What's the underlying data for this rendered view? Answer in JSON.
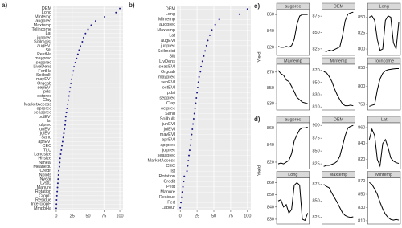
{
  "chart_data": [
    {
      "type": "dot",
      "label": "a)",
      "color": "#1a1a8c",
      "xlim": [
        -5,
        105
      ],
      "xticks": [
        0,
        25,
        50,
        75,
        100
      ],
      "categories": [
        "DEM",
        "Long",
        "Mintemp",
        "augprec",
        "Maxtemp",
        "Tolincome",
        "Lat",
        "junprec",
        "Soilmoist",
        "augEVI",
        "Silt",
        "PestHa",
        "mayprec",
        "sepprec",
        "LiveDens",
        "FertHa",
        "Soilbulk",
        "mayEVI",
        "Orgcab",
        "sepEVI",
        "pdsi",
        "octprec",
        "Clay",
        "MarketAccess",
        "aprprec",
        "seasprec",
        "octEVI",
        "lst",
        "julprec",
        "junEVI",
        "julEVI",
        "Sand",
        "aprEVI",
        "CEC",
        "TLU",
        "Landsize",
        "Hhsize",
        "Nmeal",
        "Meanedu",
        "Credit",
        "Nplots",
        "Nyear",
        "LvstD",
        "Manure",
        "Rotation",
        "CropD",
        "Residue",
        "IntercropH",
        "MmpbHa"
      ],
      "values": [
        100,
        94,
        76,
        62,
        55,
        50,
        46,
        43,
        41,
        38,
        36,
        34,
        32,
        30,
        28,
        27,
        25,
        24,
        23,
        22,
        21,
        20,
        19,
        18,
        17,
        16,
        15,
        14.5,
        14,
        13,
        12,
        11,
        10,
        9,
        8,
        7,
        6,
        5.5,
        5,
        4,
        3.5,
        3,
        2.5,
        2,
        1.5,
        1,
        0.5,
        0.3,
        0
      ]
    },
    {
      "type": "dot",
      "label": "b)",
      "color": "#1a1a8c",
      "xlim": [
        -5,
        105
      ],
      "xticks": [
        0,
        25,
        50,
        75,
        100
      ],
      "categories": [
        "DEM",
        "Long",
        "Mintemp",
        "augprec",
        "Maxtemp",
        "Lat",
        "augEVI",
        "junprec",
        "Soilmoist",
        "Silt",
        "LivDens",
        "seasEVI",
        "Orgcab",
        "mayprec",
        "sepEVI",
        "octEVI",
        "pdsi",
        "sepprec",
        "Clay",
        "octprec",
        "Sand",
        "Soilbulk",
        "junEVI",
        "julEVI",
        "mayEVI",
        "aprEVI",
        "aprprec",
        "julprec",
        "seasprec",
        "MarketAccess",
        "CEC",
        "lst",
        "Rotation",
        "Credit",
        "Pest",
        "Manure",
        "Residue",
        "Fert",
        "Labour"
      ],
      "values": [
        100,
        88,
        58,
        52,
        47,
        44,
        41,
        39,
        37,
        35,
        33,
        31,
        30,
        28,
        27,
        26,
        25,
        24,
        23,
        22,
        21,
        20,
        19,
        18,
        17,
        16,
        15,
        14,
        13,
        12,
        11,
        10,
        6,
        5,
        4,
        3,
        2,
        1,
        0
      ]
    },
    {
      "type": "small-multiples",
      "label": "c)",
      "y_label": "Yield",
      "color": "#000000",
      "panels": [
        {
          "title": "augprec",
          "ylim": [
            810,
            866
          ],
          "yticks": [
            820,
            840,
            860
          ],
          "values": [
            821,
            820,
            820,
            821,
            820,
            822,
            830,
            848,
            858,
            860,
            860,
            860
          ]
        },
        {
          "title": "DEM",
          "ylim": [
            815,
            885
          ],
          "yticks": [
            825,
            850,
            875
          ],
          "values": [
            822,
            821,
            823,
            822,
            824,
            826,
            828,
            845,
            868,
            878,
            880,
            881
          ]
        },
        {
          "title": "Long",
          "ylim": [
            790,
            862
          ],
          "yticks": [
            800,
            825,
            850
          ],
          "values": [
            850,
            852,
            845,
            815,
            798,
            800,
            845,
            852,
            850,
            810,
            800,
            842
          ]
        },
        {
          "title": "Maxtemp",
          "ylim": [
            822,
            880
          ],
          "yticks": [
            830,
            850,
            870
          ],
          "values": [
            872,
            868,
            866,
            860,
            858,
            852,
            845,
            838,
            835,
            832,
            831,
            830
          ]
        },
        {
          "title": "Mintemp",
          "ylim": [
            805,
            880
          ],
          "yticks": [
            810,
            830,
            850,
            870
          ],
          "values": [
            868,
            866,
            860,
            852,
            840,
            830,
            822,
            815,
            812,
            812,
            813,
            812
          ]
        },
        {
          "title": "Tolincome",
          "ylim": [
            735,
            860
          ],
          "yticks": [
            750,
            800,
            850
          ],
          "values": [
            745,
            748,
            750,
            790,
            820,
            835,
            842,
            845,
            846,
            847,
            848,
            848
          ]
        }
      ]
    },
    {
      "type": "small-multiples",
      "label": "d)",
      "y_label": "Yield",
      "color": "#000000",
      "panels": [
        {
          "title": "augprec",
          "ylim": [
            812,
            866
          ],
          "yticks": [
            820,
            840,
            860
          ],
          "values": [
            818,
            819,
            818,
            820,
            822,
            830,
            845,
            852,
            858,
            860,
            860,
            861
          ]
        },
        {
          "title": "DEM",
          "ylim": [
            815,
            905
          ],
          "yticks": [
            825,
            850,
            875,
            900
          ],
          "values": [
            820,
            822,
            822,
            824,
            826,
            830,
            840,
            860,
            880,
            895,
            898,
            900
          ]
        },
        {
          "title": "Lat",
          "ylim": [
            808,
            866
          ],
          "yticks": [
            820,
            840,
            860
          ],
          "values": [
            845,
            858,
            850,
            820,
            812,
            840,
            845,
            835,
            822,
            818,
            816,
            815
          ]
        },
        {
          "title": "Long",
          "ylim": [
            826,
            864
          ],
          "yticks": [
            830,
            840,
            850,
            860
          ],
          "values": [
            845,
            846,
            840,
            842,
            835,
            838,
            858,
            860,
            858,
            830,
            829,
            835
          ]
        },
        {
          "title": "Maxtemp",
          "ylim": [
            815,
            885
          ],
          "yticks": [
            825,
            850,
            875
          ],
          "values": [
            875,
            872,
            870,
            862,
            855,
            848,
            840,
            832,
            828,
            826,
            825,
            826
          ]
        },
        {
          "title": "Mintemp",
          "ylim": [
            805,
            875
          ],
          "yticks": [
            810,
            830,
            850,
            870
          ],
          "values": [
            868,
            865,
            858,
            850,
            838,
            828,
            820,
            815,
            812,
            811,
            812,
            811
          ]
        }
      ]
    }
  ]
}
